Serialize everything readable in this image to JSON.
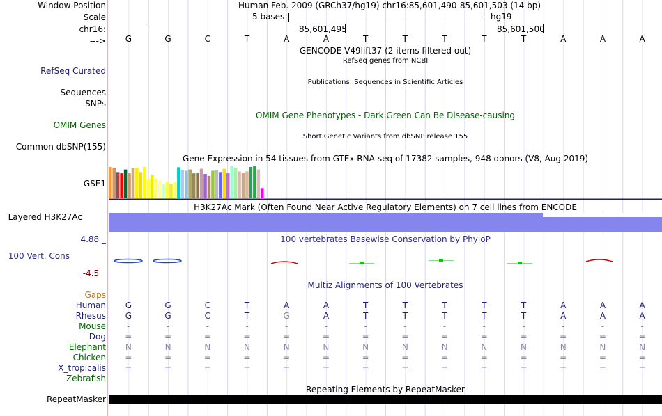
{
  "header": {
    "window_position_label": "Window Position",
    "window_position_value": "Human Feb. 2009 (GRCh37/hg19)   chr16:85,601,490-85,601,503 (14 bp)",
    "scale_label": "Scale",
    "scale_text": "5 bases",
    "scale_db": "hg19",
    "chrom_label": "chr16:",
    "pos1": "85,601,495",
    "pos2": "85,601,500",
    "strand_label": "--->"
  },
  "sequence": [
    "G",
    "G",
    "C",
    "T",
    "A",
    "A",
    "T",
    "T",
    "T",
    "T",
    "T",
    "A",
    "A",
    "A"
  ],
  "tracks": {
    "gencode_title": "GENCODE V49lift37 (2 items filtered out)",
    "refseq_label": "RefSeq Curated",
    "refseq_title": "RefSeq genes from NCBI",
    "sequences_label": "Sequences",
    "sequences_title": "Publications: Sequences in Scientific Articles",
    "snps_label": "SNPs",
    "omim_title": "OMIM Gene Phenotypes - Dark Green Can Be Disease-causing",
    "omim_label": "OMIM Genes",
    "dbsnp_title": "Short Genetic Variants from dbSNP release 155",
    "dbsnp_label": "Common dbSNP(155)",
    "gtex_title": "Gene Expression in 54 tissues from GTEx RNA-seq of 17382 samples, 948 donors (V8, Aug 2019)",
    "gtex_label": "GSE1",
    "h3k27_title": "H3K27Ac Mark (Often Found Near Active Regulatory Elements) on 7 cell lines from ENCODE",
    "h3k27_label": "Layered H3K27Ac",
    "phylop_max": "4.88 _",
    "phylop_title": "100 vertebrates Basewise Conservation by PhyloP",
    "phylop_label": "100 Vert. Cons",
    "phylop_min": "-4.5 _",
    "multiz_title": "Multiz Alignments of 100 Vertebrates",
    "gaps_label": "Gaps",
    "repeat_title": "Repeating Elements by RepeatMasker",
    "repeat_label": "RepeatMasker"
  },
  "gtex_colors": [
    "#ff9933",
    "#cc9966",
    "#aa4444",
    "#ff0000",
    "#006633",
    "#cc9966",
    "#ccaa88",
    "#ffee00",
    "#eedd00",
    "#ffff00",
    "#ffff44",
    "#eeee00",
    "#ffff66",
    "#ffff99",
    "#ccffcc",
    "#ffff33",
    "#eeee22",
    "#ffff55",
    "#00cccc",
    "#aaccee",
    "#99bbdd",
    "#aaaa66",
    "#998855",
    "#887744",
    "#cc99aa",
    "#9966cc",
    "#aa8866",
    "#99cc33",
    "#bbbbbb",
    "#6666ff",
    "#ffdd00",
    "#cc66cc",
    "#99ffcc",
    "#aaeeaa",
    "#ddbbaa",
    "#ccaa88",
    "#ddbb99",
    "#339966",
    "#22aa44",
    "#ddbbbb",
    "#ee00ee"
  ],
  "gtex_values": [
    0.98,
    0.96,
    0.82,
    0.78,
    0.9,
    0.78,
    0.95,
    0.96,
    0.82,
    0.98,
    0.6,
    0.72,
    0.62,
    0.55,
    0.45,
    0.52,
    0.44,
    0.5,
    0.97,
    0.88,
    0.86,
    0.9,
    0.78,
    0.8,
    0.92,
    0.76,
    0.7,
    0.86,
    0.88,
    0.82,
    0.92,
    0.78,
    1.0,
    0.96,
    0.84,
    0.8,
    0.84,
    0.98,
    1.0,
    0.9,
    0.32
  ],
  "alignment": {
    "species": [
      {
        "name": "Human",
        "bases": [
          "G",
          "G",
          "C",
          "T",
          "A",
          "A",
          "T",
          "T",
          "T",
          "T",
          "T",
          "A",
          "A",
          "A"
        ]
      },
      {
        "name": "Rhesus",
        "bases": [
          "G",
          "G",
          "C",
          "T",
          "G",
          "A",
          "T",
          "T",
          "T",
          "T",
          "T",
          "A",
          "A",
          "A"
        ]
      },
      {
        "name": "Mouse",
        "bases": [
          "-",
          "-",
          "-",
          "-",
          "-",
          "-",
          "-",
          "-",
          "-",
          "-",
          "-",
          "-",
          "-",
          "-"
        ]
      },
      {
        "name": "Dog",
        "bases": [
          "=",
          "=",
          "=",
          "=",
          "=",
          "=",
          "=",
          "=",
          "=",
          "=",
          "=",
          "=",
          "=",
          "="
        ]
      },
      {
        "name": "Elephant",
        "bases": [
          "N",
          "N",
          "N",
          "N",
          "N",
          "N",
          "N",
          "N",
          "N",
          "N",
          "N",
          "N",
          "N",
          "N"
        ]
      },
      {
        "name": "Chicken",
        "bases": [
          "=",
          "=",
          "=",
          "=",
          "=",
          "=",
          "=",
          "=",
          "=",
          "=",
          "=",
          "=",
          "=",
          "="
        ]
      },
      {
        "name": "X_tropicalis",
        "bases": [
          "=",
          "=",
          "=",
          "=",
          "=",
          "=",
          "=",
          "=",
          "=",
          "=",
          "=",
          "=",
          "=",
          "="
        ]
      },
      {
        "name": "Zebrafish",
        "bases": [
          "",
          "",
          "",
          "",
          "",
          "",
          "",
          "",
          "",
          "",
          "",
          "",
          "",
          ""
        ]
      }
    ]
  },
  "colors": {
    "navy": "#1f1f78",
    "h3k27": "#8585ee",
    "repeat": "#000000"
  }
}
